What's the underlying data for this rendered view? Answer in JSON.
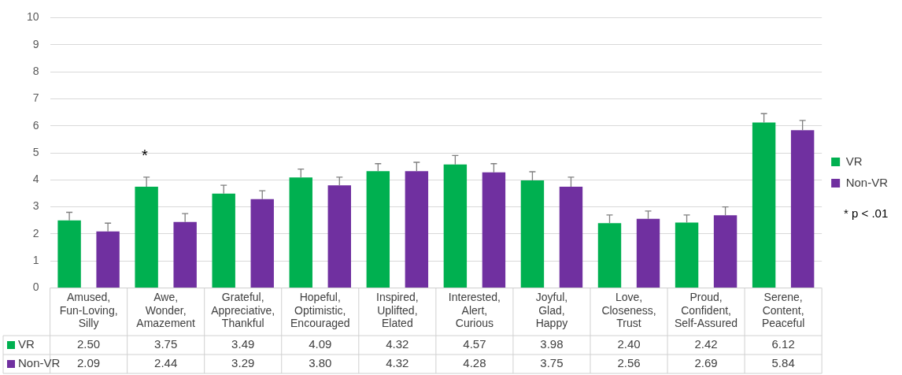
{
  "chart_data": {
    "type": "bar",
    "categories": [
      "Amused, Fun-Loving, Silly",
      "Awe, Wonder, Amazement",
      "Grateful, Appreciative, Thankful",
      "Hopeful, Optimistic, Encouraged",
      "Inspired, Uplifted, Elated",
      "Interested, Alert, Curious",
      "Joyful, Glad, Happy",
      "Love, Closeness, Trust",
      "Proud, Confident, Self-Assured",
      "Serene, Content, Peaceful"
    ],
    "series": [
      {
        "name": "VR",
        "color": "#00b050",
        "values": [
          2.5,
          3.75,
          3.49,
          4.09,
          4.32,
          4.57,
          3.98,
          2.4,
          2.42,
          6.12
        ],
        "value_labels": [
          "2.50",
          "3.75",
          "3.49",
          "4.09",
          "4.32",
          "4.57",
          "3.98",
          "2.40",
          "2.42",
          "6.12"
        ],
        "errors": [
          [
            2.5,
            2.8
          ],
          [
            3.75,
            4.1
          ],
          [
            3.49,
            3.8
          ],
          [
            4.09,
            4.4
          ],
          [
            4.32,
            4.6
          ],
          [
            4.57,
            4.9
          ],
          [
            3.98,
            4.3
          ],
          [
            2.4,
            2.7
          ],
          [
            2.42,
            2.7
          ],
          [
            6.12,
            6.45
          ]
        ]
      },
      {
        "name": "Non-VR",
        "color": "#7030a0",
        "values": [
          2.09,
          2.44,
          3.29,
          3.8,
          4.32,
          4.28,
          3.75,
          2.56,
          2.69,
          5.84
        ],
        "value_labels": [
          "2.09",
          "2.44",
          "3.29",
          "3.80",
          "4.32",
          "4.28",
          "3.75",
          "2.56",
          "2.69",
          "5.84"
        ],
        "errors": [
          [
            2.09,
            2.4
          ],
          [
            2.44,
            2.75
          ],
          [
            3.29,
            3.6
          ],
          [
            3.8,
            4.1
          ],
          [
            4.32,
            4.65
          ],
          [
            4.28,
            4.6
          ],
          [
            3.75,
            4.1
          ],
          [
            2.56,
            2.85
          ],
          [
            2.69,
            3.0
          ],
          [
            5.84,
            6.2
          ]
        ]
      }
    ],
    "ylim": [
      0,
      10
    ],
    "yticks": [
      0,
      1,
      2,
      3,
      4,
      5,
      6,
      7,
      8,
      9,
      10
    ],
    "grid": "y",
    "legend": "right",
    "annotations": [
      "*",
      "* p < .01"
    ]
  }
}
